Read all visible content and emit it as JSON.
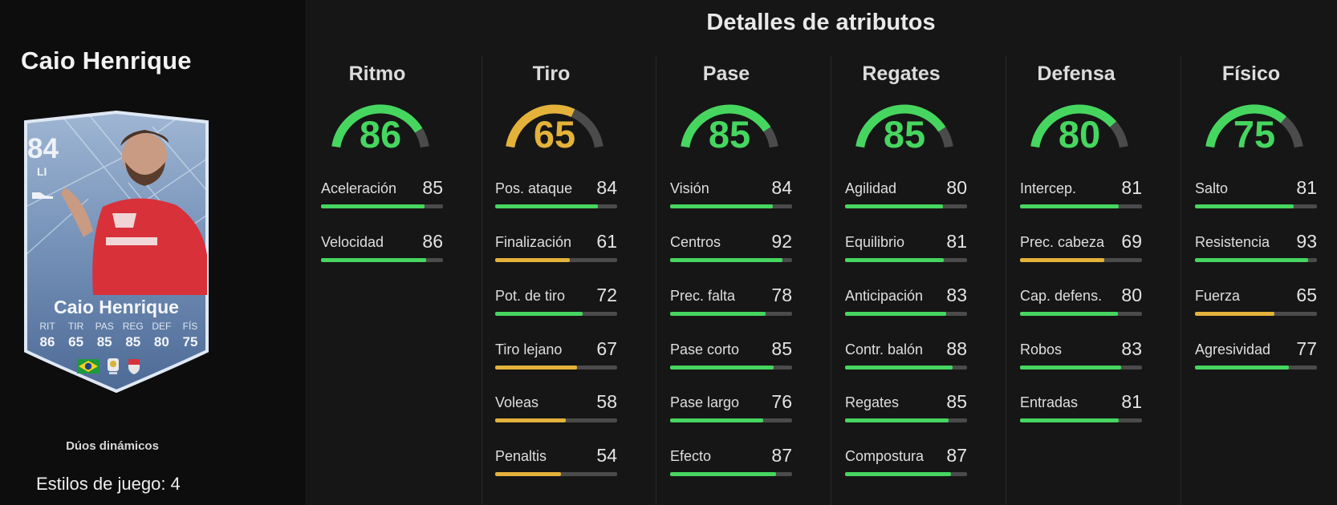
{
  "player": {
    "name": "Caio Henrique",
    "overall": "84",
    "position": "LI",
    "card_stats": [
      {
        "label": "RIT",
        "value": "86"
      },
      {
        "label": "TIR",
        "value": "65"
      },
      {
        "label": "PAS",
        "value": "85"
      },
      {
        "label": "REG",
        "value": "85"
      },
      {
        "label": "DEF",
        "value": "80"
      },
      {
        "label": "FÍS",
        "value": "75"
      }
    ],
    "card_variant": "Dúos dinámicos",
    "playstyles": "Estilos de juego: 4"
  },
  "section_title": "Detalles de atributos",
  "colors": {
    "high": "#46d660",
    "mid": "#e4b23a",
    "track": "#4a4b4a"
  },
  "categories": [
    {
      "name": "Ritmo",
      "value": 86,
      "attributes": [
        {
          "name": "Aceleración",
          "value": 85
        },
        {
          "name": "Velocidad",
          "value": 86
        }
      ]
    },
    {
      "name": "Tiro",
      "value": 65,
      "attributes": [
        {
          "name": "Pos. ataque",
          "value": 84
        },
        {
          "name": "Finalización",
          "value": 61
        },
        {
          "name": "Pot. de tiro",
          "value": 72
        },
        {
          "name": "Tiro lejano",
          "value": 67
        },
        {
          "name": "Voleas",
          "value": 58
        },
        {
          "name": "Penaltis",
          "value": 54
        }
      ]
    },
    {
      "name": "Pase",
      "value": 85,
      "attributes": [
        {
          "name": "Visión",
          "value": 84
        },
        {
          "name": "Centros",
          "value": 92
        },
        {
          "name": "Prec. falta",
          "value": 78
        },
        {
          "name": "Pase corto",
          "value": 85
        },
        {
          "name": "Pase largo",
          "value": 76
        },
        {
          "name": "Efecto",
          "value": 87
        }
      ]
    },
    {
      "name": "Regates",
      "value": 85,
      "attributes": [
        {
          "name": "Agilidad",
          "value": 80
        },
        {
          "name": "Equilibrio",
          "value": 81
        },
        {
          "name": "Anticipación",
          "value": 83
        },
        {
          "name": "Contr. balón",
          "value": 88
        },
        {
          "name": "Regates",
          "value": 85
        },
        {
          "name": "Compostura",
          "value": 87
        }
      ]
    },
    {
      "name": "Defensa",
      "value": 80,
      "attributes": [
        {
          "name": "Intercep.",
          "value": 81
        },
        {
          "name": "Prec. cabeza",
          "value": 69
        },
        {
          "name": "Cap. defens.",
          "value": 80
        },
        {
          "name": "Robos",
          "value": 83
        },
        {
          "name": "Entradas",
          "value": 81
        }
      ]
    },
    {
      "name": "Físico",
      "value": 75,
      "attributes": [
        {
          "name": "Salto",
          "value": 81
        },
        {
          "name": "Resistencia",
          "value": 93
        },
        {
          "name": "Fuerza",
          "value": 65
        },
        {
          "name": "Agresividad",
          "value": 77
        }
      ]
    }
  ]
}
